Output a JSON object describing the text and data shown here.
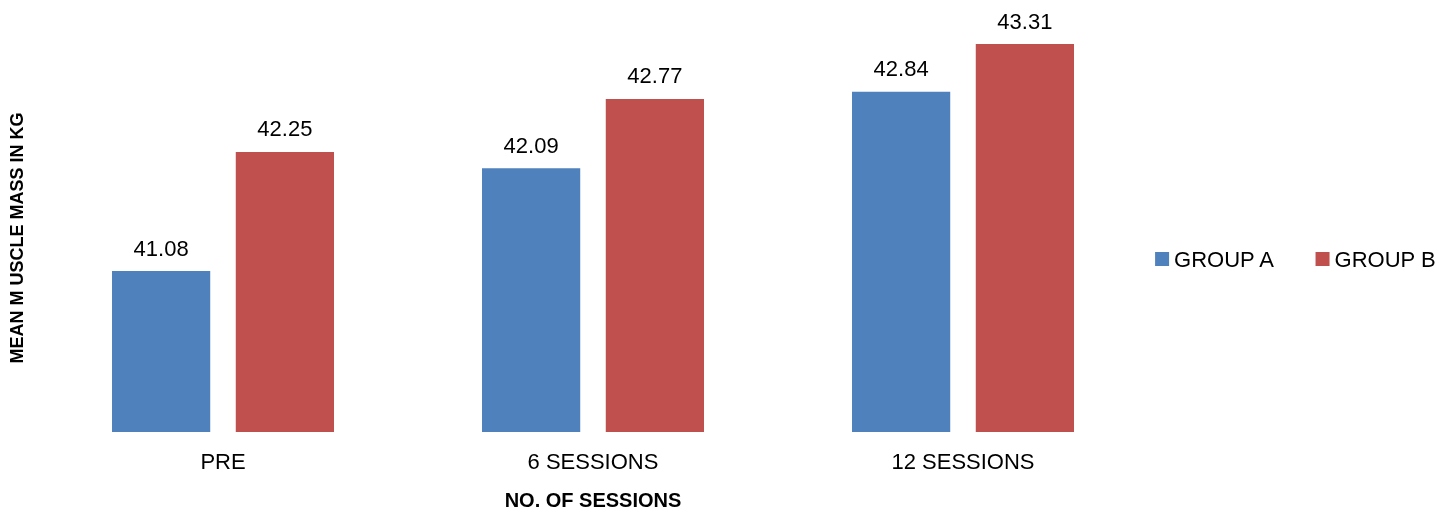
{
  "chart_data": {
    "type": "bar",
    "xlabel": "NO. OF SESSIONS",
    "ylabel": "MEAN M USCLE MASS IN KG",
    "categories": [
      "PRE",
      "6 SESSIONS",
      "12 SESSIONS"
    ],
    "series": [
      {
        "name": "GROUP A",
        "color": "#4f81bd",
        "values": [
          41.08,
          42.09,
          42.84
        ]
      },
      {
        "name": "GROUP B",
        "color": "#c0504d",
        "values": [
          42.25,
          42.77,
          43.31
        ]
      }
    ],
    "ylim": [
      39.5,
      43.31
    ],
    "tick_labels": "x",
    "data_labels": true,
    "legend": "right",
    "grid": false
  }
}
